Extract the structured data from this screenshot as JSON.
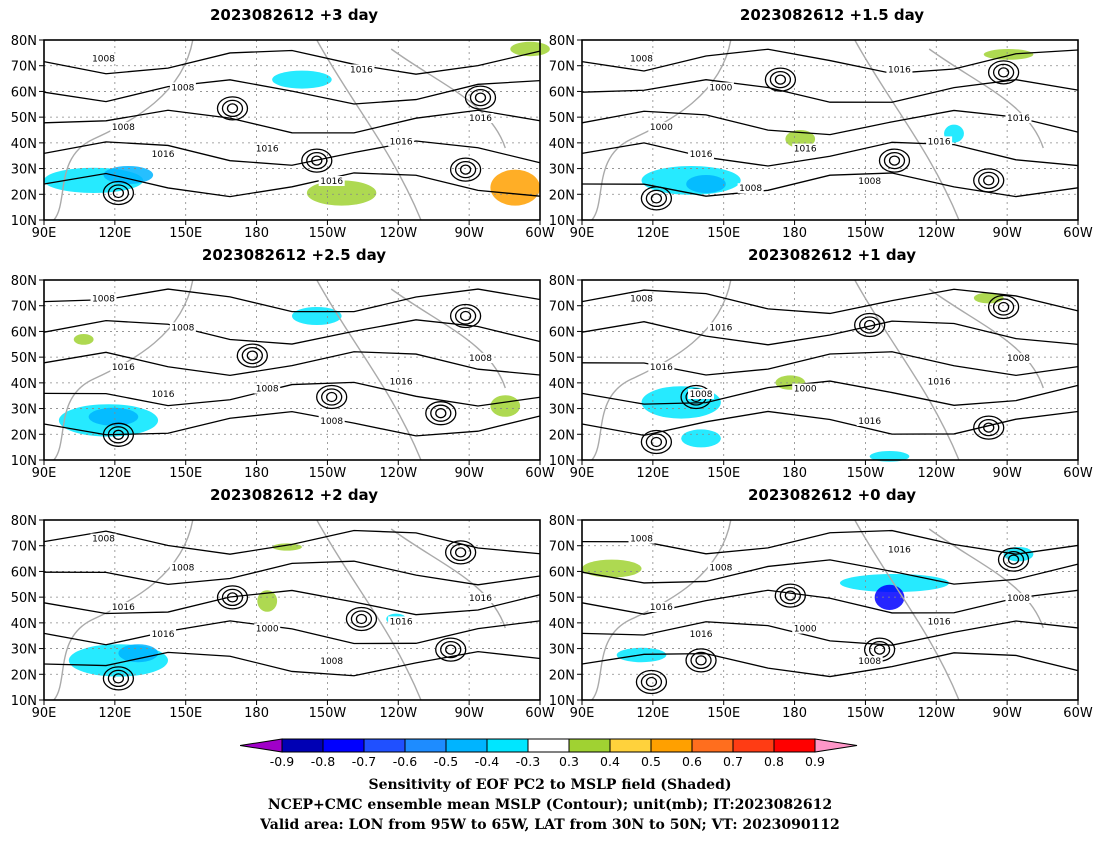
{
  "panels": [
    {
      "title": "2023082612 +3 day",
      "contour_labels": [
        "1008",
        "1008",
        "1016",
        "1008",
        "1016",
        "1016",
        "1016",
        "1016",
        "1016"
      ]
    },
    {
      "title": "2023082612 +1.5 day",
      "contour_labels": [
        "1008",
        "1000",
        "1016",
        "1000",
        "1016",
        "1008",
        "1016",
        "1016",
        "1016",
        "1008"
      ]
    },
    {
      "title": "2023082612 +2.5 day",
      "contour_labels": [
        "1008",
        "1016",
        "1016",
        "1008",
        "1008",
        "1008",
        "1016",
        "1008"
      ]
    },
    {
      "title": "2023082612 +1 day",
      "contour_labels": [
        "1008",
        "1016",
        "1008",
        "1016",
        "1000",
        "1016",
        "1016",
        "1008"
      ]
    },
    {
      "title": "2023082612 +2 day",
      "contour_labels": [
        "1008",
        "1016",
        "1016",
        "1008",
        "1000",
        "1008",
        "1016",
        "1016"
      ]
    },
    {
      "title": "2023082612 +0 day",
      "contour_labels": [
        "1008",
        "1016",
        "1016",
        "1008",
        "1000",
        "1008",
        "1016",
        "1008",
        "1016"
      ]
    }
  ],
  "map_axes": {
    "lat_ticks": [
      "80N",
      "70N",
      "60N",
      "50N",
      "40N",
      "30N",
      "20N",
      "10N"
    ],
    "lon_ticks": [
      "90E",
      "120E",
      "150E",
      "180",
      "150W",
      "120W",
      "90W",
      "60W"
    ],
    "lat_range": [
      10,
      80
    ],
    "lon_range_east": [
      90,
      300
    ]
  },
  "colorbar": {
    "ticks": [
      "-0.9",
      "-0.8",
      "-0.7",
      "-0.6",
      "-0.5",
      "-0.4",
      "-0.3",
      "0.3",
      "0.4",
      "0.5",
      "0.6",
      "0.7",
      "0.8",
      "0.9"
    ],
    "colors": [
      "#a000c8",
      "#0000b4",
      "#0000ff",
      "#2050ff",
      "#1e8cff",
      "#00b4ff",
      "#00e6ff",
      "#ffffff",
      "#a0d232",
      "#ffd23c",
      "#ffa000",
      "#ff6e1e",
      "#ff3c14",
      "#ff0000",
      "#ff96c8"
    ]
  },
  "caption": [
    "Sensitivity of EOF PC2 to MSLP field (Shaded)",
    "NCEP+CMC ensemble mean MSLP (Contour); unit(mb); IT:2023082612",
    "Valid area: LON from 95W to 65W, LAT from 30N to 50N; VT: 2023090112"
  ]
}
